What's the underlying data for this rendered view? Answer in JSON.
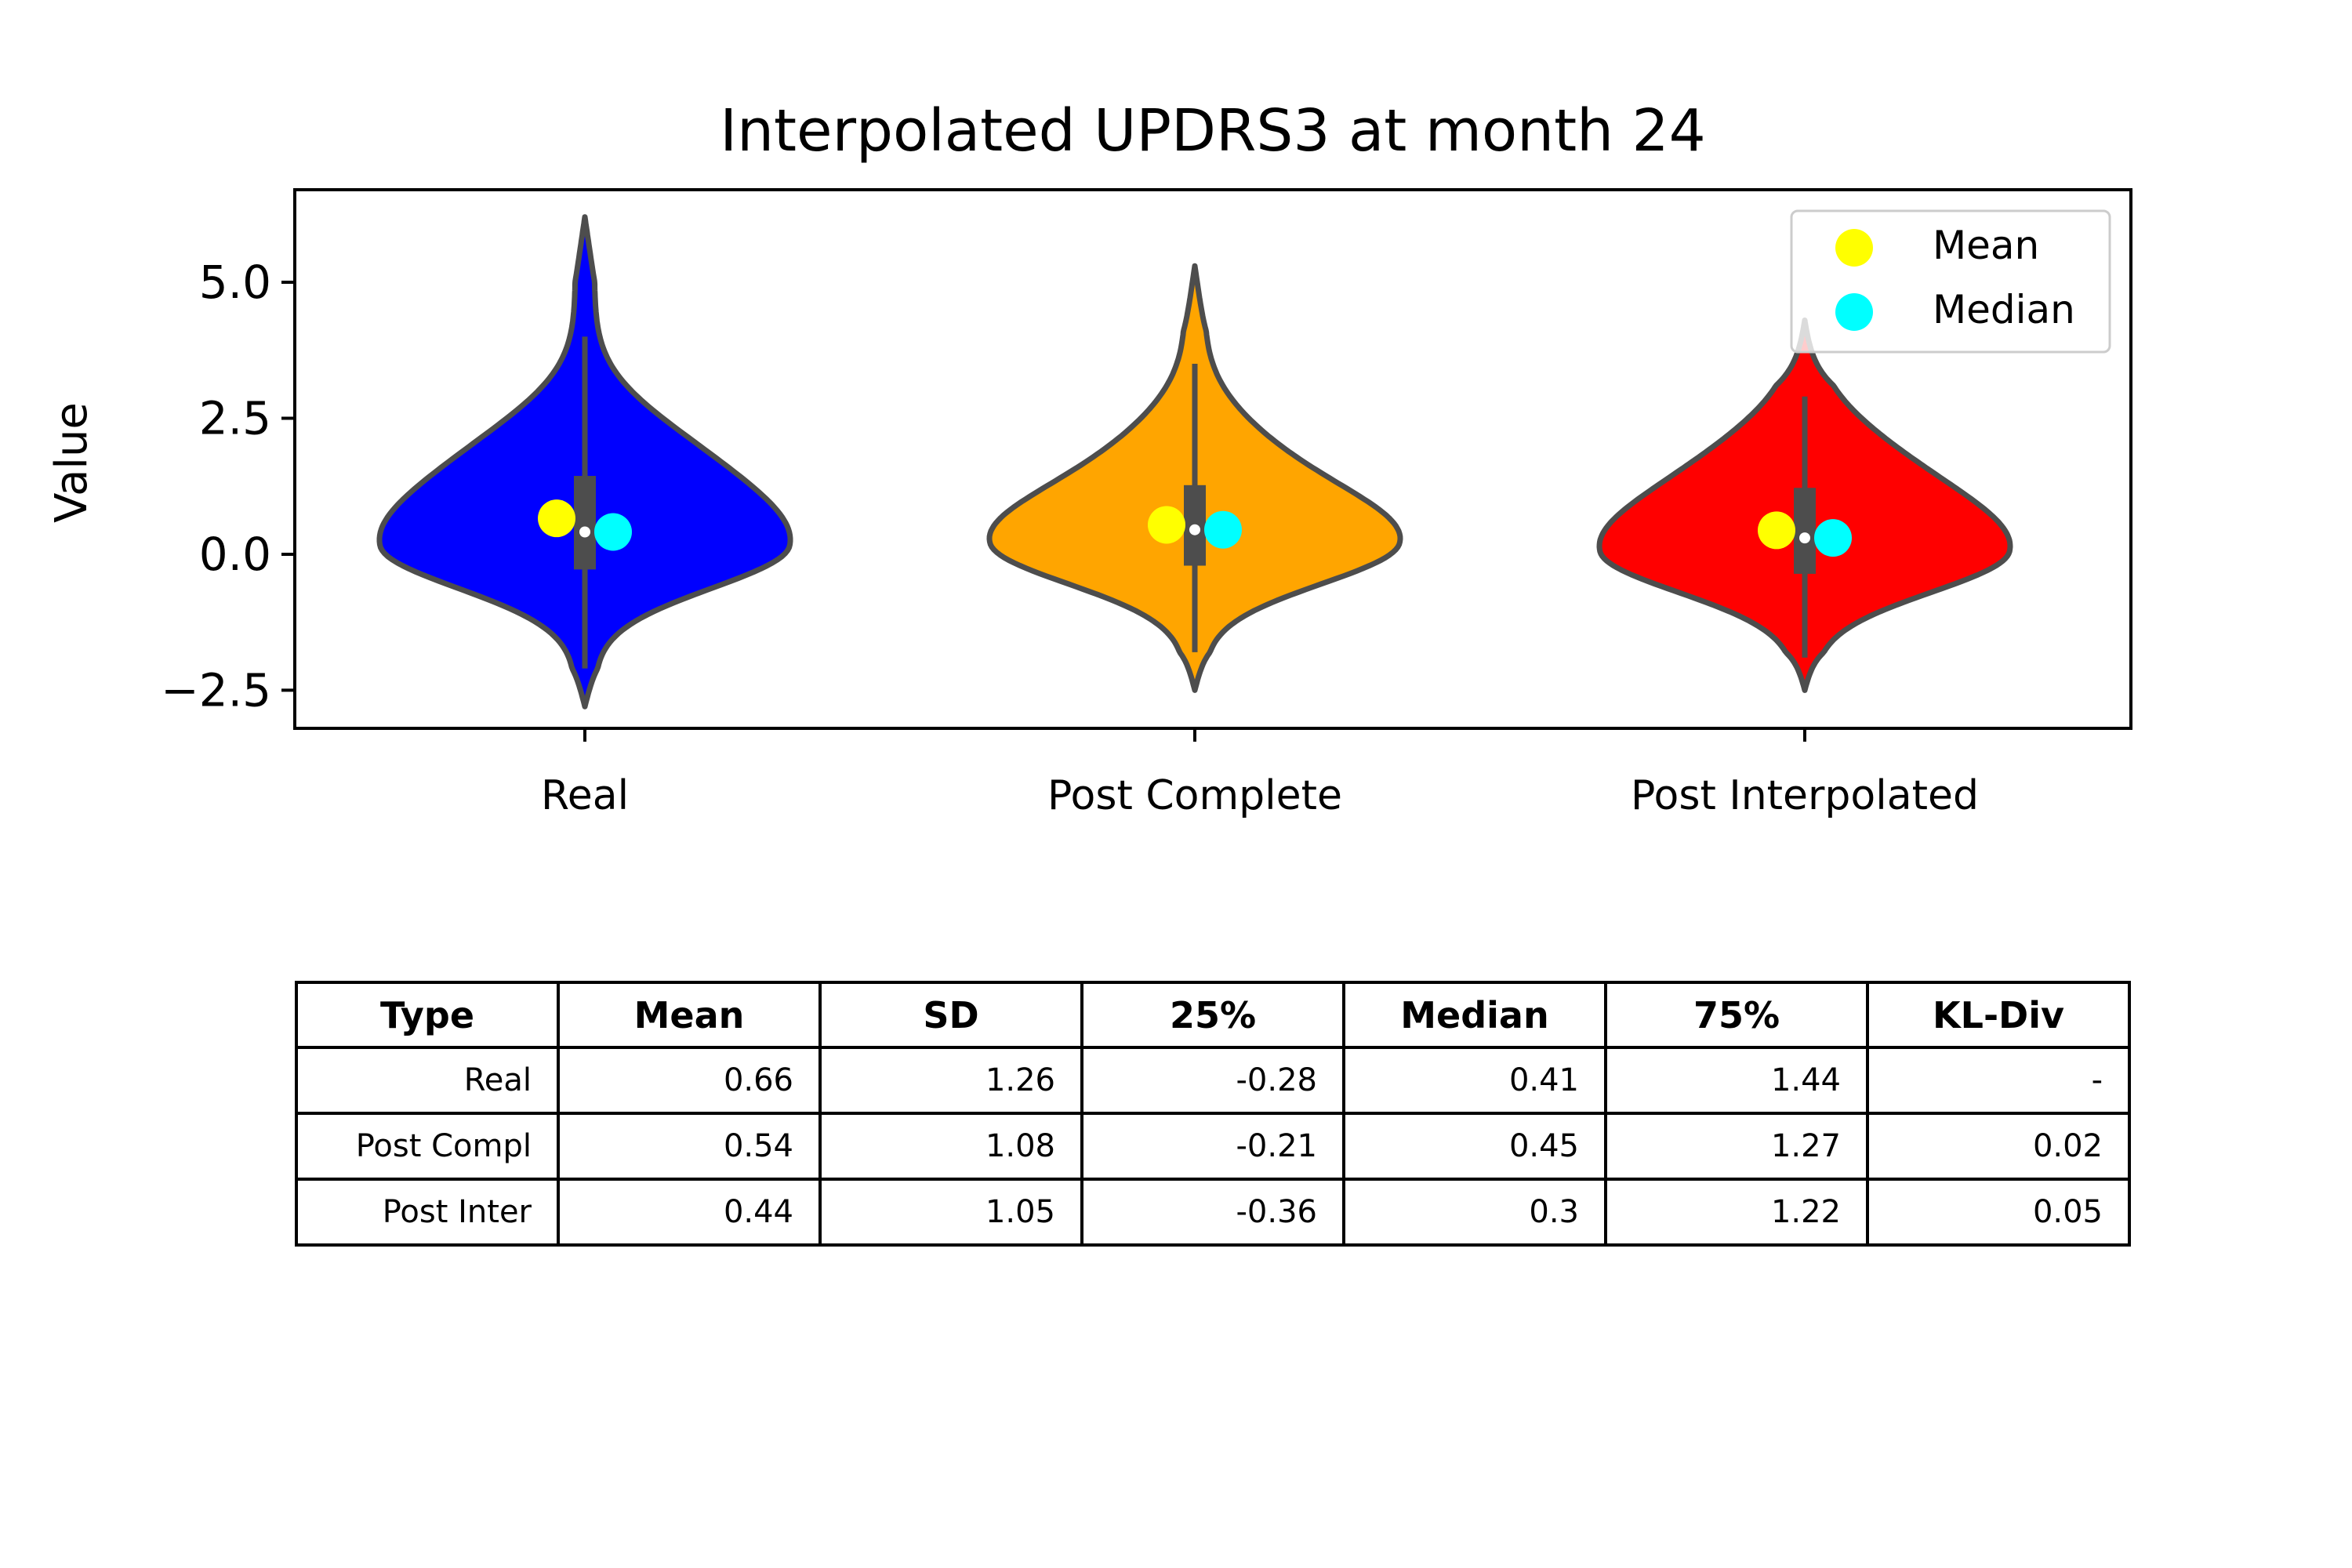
{
  "chart_data": {
    "type": "violin",
    "title": "Interpolated UPDRS3 at month 24",
    "xlabel": "",
    "ylabel": "Value",
    "ylim": [
      -3.2,
      6.7
    ],
    "yticks": [
      5.0,
      2.5,
      0.0,
      -2.5
    ],
    "ytick_labels": [
      "5.0",
      "2.5",
      "0.0",
      "−2.5"
    ],
    "categories": [
      "Real",
      "Post Complete",
      "Post Interpolated"
    ],
    "legend": {
      "placement": "top-right",
      "entries": [
        {
          "label": "Mean",
          "color": "#ffff00"
        },
        {
          "label": "Median",
          "color": "#00ffff"
        }
      ]
    },
    "colors": {
      "violins": [
        "#0000ff",
        "#ffa500",
        "#ff0000"
      ],
      "outline": "#4d4d4d",
      "mean_marker": "#ffff00",
      "median_marker": "#00ffff"
    },
    "series": [
      {
        "category": "Real",
        "mean": 0.66,
        "median": 0.41,
        "q1": -0.28,
        "q3": 1.44,
        "whisker_low": -2.1,
        "whisker_high": 4.0,
        "min": -2.8,
        "max": 6.2
      },
      {
        "category": "Post Complete",
        "mean": 0.54,
        "median": 0.45,
        "q1": -0.21,
        "q3": 1.27,
        "whisker_low": -1.8,
        "whisker_high": 3.5,
        "min": -2.5,
        "max": 5.3
      },
      {
        "category": "Post Interpolated",
        "mean": 0.44,
        "median": 0.3,
        "q1": -0.36,
        "q3": 1.22,
        "whisker_low": -1.9,
        "whisker_high": 2.9,
        "min": -2.5,
        "max": 4.3
      }
    ],
    "table": {
      "columns": [
        "Type",
        "Mean",
        "SD",
        "25%",
        "Median",
        "75%",
        "KL-Div"
      ],
      "rows": [
        [
          "Real",
          "0.66",
          "1.26",
          "-0.28",
          "0.41",
          "1.44",
          "-"
        ],
        [
          "Post Compl",
          "0.54",
          "1.08",
          "-0.21",
          "0.45",
          "1.27",
          "0.02"
        ],
        [
          "Post Inter",
          "0.44",
          "1.05",
          "-0.36",
          "0.3",
          "1.22",
          "0.05"
        ]
      ]
    }
  }
}
